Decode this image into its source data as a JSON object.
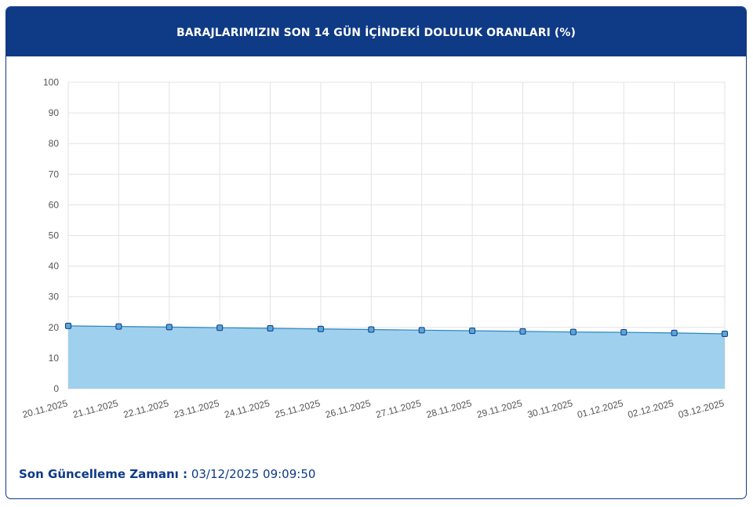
{
  "header": {
    "title": "BARAJLARIMIZIN SON 14 GÜN İÇİNDEKİ DOLULUK ORANLARI (%)"
  },
  "footer": {
    "label": "Son Güncelleme Zamanı :",
    "value": "03/12/2025 09:09:50"
  },
  "colors": {
    "header_bg": "#0e3a86",
    "line": "#2a86bf",
    "area_fill": "#9fd0ee",
    "marker_fill": "#5aa6d6",
    "marker_stroke": "#0e3a86",
    "grid": "#e3e3e3"
  },
  "chart_data": {
    "type": "area",
    "title": "BARAJLARIMIZIN SON 14 GÜN İÇİNDEKİ DOLULUK ORANLARI (%)",
    "xlabel": "",
    "ylabel": "",
    "ylim": [
      0,
      100
    ],
    "yticks": [
      0,
      10,
      20,
      30,
      40,
      50,
      60,
      70,
      80,
      90,
      100
    ],
    "grid": true,
    "legend": "none",
    "categories": [
      "20.11.2025",
      "21.11.2025",
      "22.11.2025",
      "23.11.2025",
      "24.11.2025",
      "25.11.2025",
      "26.11.2025",
      "27.11.2025",
      "28.11.2025",
      "29.11.2025",
      "30.11.2025",
      "01.12.2025",
      "02.12.2025",
      "03.12.2025"
    ],
    "series": [
      {
        "values": [
          20.5,
          20.3,
          20.1,
          19.9,
          19.7,
          19.5,
          19.3,
          19.1,
          18.9,
          18.7,
          18.5,
          18.4,
          18.2,
          17.9
        ]
      }
    ]
  }
}
